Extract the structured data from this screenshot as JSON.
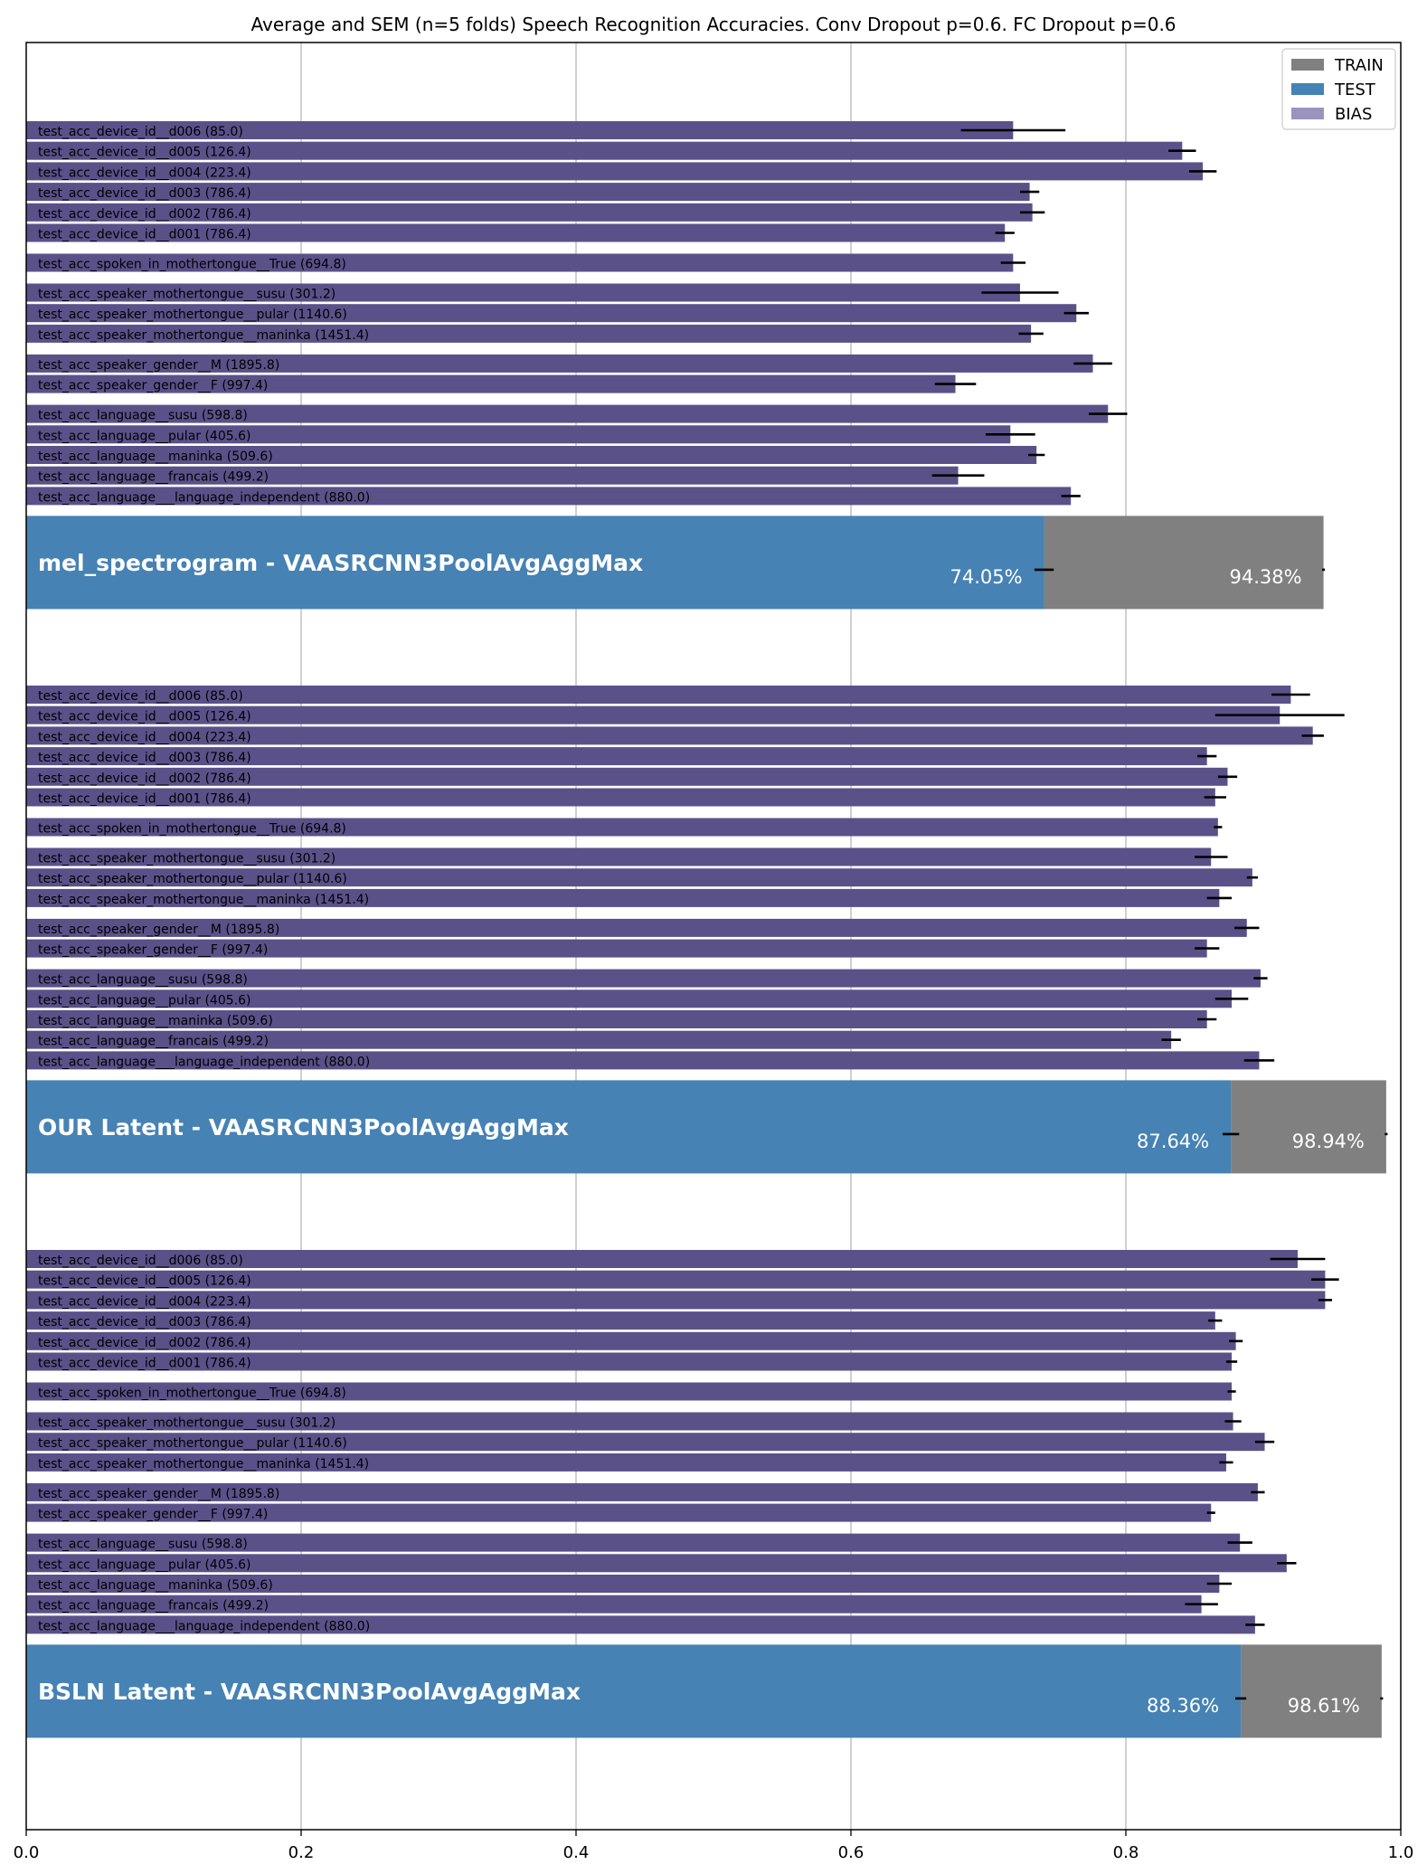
{
  "chart_data": {
    "type": "bar",
    "orientation": "horizontal",
    "title": "Average and SEM (n=5 folds) Speech Recognition Accuracies. Conv Dropout p=0.6. FC Dropout p=0.6",
    "xlabel": "",
    "ylabel": "",
    "xlim": [
      0.0,
      1.0
    ],
    "xticks": [
      "0.0",
      "0.2",
      "0.4",
      "0.6",
      "0.8",
      "1.0"
    ],
    "grid": "x",
    "legend": {
      "position": "top-right",
      "entries": [
        {
          "label": "TRAIN",
          "color": "#808080"
        },
        {
          "label": "TEST",
          "color": "#4682b4"
        },
        {
          "label": "BIAS",
          "color": "#9b93bf"
        }
      ]
    },
    "colors": {
      "bias_bar": "#5b5189",
      "test": "#4682b4",
      "train": "#808080",
      "error": "#000000",
      "grid": "#b0b0b0"
    },
    "groups": [
      {
        "name": "mel_spectrogram - VAASRCNN3PoolAvgAggMax",
        "test": 0.7405,
        "test_err": 0.007,
        "test_label": "74.05%",
        "train": 0.9438,
        "train_err": 0.001,
        "train_label": "94.38%",
        "bias_bars": [
          {
            "label": "test_acc_device_id__d006 (85.0)",
            "value": 0.718,
            "err": 0.038
          },
          {
            "label": "test_acc_device_id__d005 (126.4)",
            "value": 0.841,
            "err": 0.01
          },
          {
            "label": "test_acc_device_id__d004 (223.4)",
            "value": 0.856,
            "err": 0.01
          },
          {
            "label": "test_acc_device_id__d003 (786.4)",
            "value": 0.73,
            "err": 0.007
          },
          {
            "label": "test_acc_device_id__d002 (786.4)",
            "value": 0.732,
            "err": 0.009
          },
          {
            "label": "test_acc_device_id__d001 (786.4)",
            "value": 0.712,
            "err": 0.007
          },
          {
            "label": "test_acc_spoken_in_mothertongue__True (694.8)",
            "value": 0.718,
            "err": 0.009
          },
          {
            "label": "test_acc_speaker_mothertongue__susu (301.2)",
            "value": 0.723,
            "err": 0.028
          },
          {
            "label": "test_acc_speaker_mothertongue__pular (1140.6)",
            "value": 0.764,
            "err": 0.009
          },
          {
            "label": "test_acc_speaker_mothertongue__maninka (1451.4)",
            "value": 0.731,
            "err": 0.009
          },
          {
            "label": "test_acc_speaker_gender__M (1895.8)",
            "value": 0.776,
            "err": 0.014
          },
          {
            "label": "test_acc_speaker_gender__F (997.4)",
            "value": 0.676,
            "err": 0.015
          },
          {
            "label": "test_acc_language__susu (598.8)",
            "value": 0.787,
            "err": 0.014
          },
          {
            "label": "test_acc_language__pular (405.6)",
            "value": 0.716,
            "err": 0.018
          },
          {
            "label": "test_acc_language__maninka (509.6)",
            "value": 0.735,
            "err": 0.006
          },
          {
            "label": "test_acc_language__francais (499.2)",
            "value": 0.678,
            "err": 0.019
          },
          {
            "label": "test_acc_language___language_independent (880.0)",
            "value": 0.76,
            "err": 0.007
          }
        ]
      },
      {
        "name": "OUR  Latent - VAASRCNN3PoolAvgAggMax",
        "test": 0.8764,
        "test_err": 0.006,
        "test_label": "87.64%",
        "train": 0.9894,
        "train_err": 0.001,
        "train_label": "98.94%",
        "bias_bars": [
          {
            "label": "test_acc_device_id__d006 (85.0)",
            "value": 0.92,
            "err": 0.014
          },
          {
            "label": "test_acc_device_id__d005 (126.4)",
            "value": 0.912,
            "err": 0.047
          },
          {
            "label": "test_acc_device_id__d004 (223.4)",
            "value": 0.936,
            "err": 0.008
          },
          {
            "label": "test_acc_device_id__d003 (786.4)",
            "value": 0.859,
            "err": 0.007
          },
          {
            "label": "test_acc_device_id__d002 (786.4)",
            "value": 0.874,
            "err": 0.007
          },
          {
            "label": "test_acc_device_id__d001 (786.4)",
            "value": 0.865,
            "err": 0.008
          },
          {
            "label": "test_acc_spoken_in_mothertongue__True (694.8)",
            "value": 0.867,
            "err": 0.003
          },
          {
            "label": "test_acc_speaker_mothertongue__susu (301.2)",
            "value": 0.862,
            "err": 0.012
          },
          {
            "label": "test_acc_speaker_mothertongue__pular (1140.6)",
            "value": 0.892,
            "err": 0.004
          },
          {
            "label": "test_acc_speaker_mothertongue__maninka (1451.4)",
            "value": 0.868,
            "err": 0.009
          },
          {
            "label": "test_acc_speaker_gender__M (1895.8)",
            "value": 0.888,
            "err": 0.009
          },
          {
            "label": "test_acc_speaker_gender__F (997.4)",
            "value": 0.859,
            "err": 0.009
          },
          {
            "label": "test_acc_language__susu (598.8)",
            "value": 0.898,
            "err": 0.005
          },
          {
            "label": "test_acc_language__pular (405.6)",
            "value": 0.877,
            "err": 0.012
          },
          {
            "label": "test_acc_language__maninka (509.6)",
            "value": 0.859,
            "err": 0.007
          },
          {
            "label": "test_acc_language__francais (499.2)",
            "value": 0.833,
            "err": 0.007
          },
          {
            "label": "test_acc_language___language_independent (880.0)",
            "value": 0.897,
            "err": 0.011
          }
        ]
      },
      {
        "name": "BSLN  Latent - VAASRCNN3PoolAvgAggMax",
        "test": 0.8836,
        "test_err": 0.004,
        "test_label": "88.36%",
        "train": 0.9861,
        "train_err": 0.001,
        "train_label": "98.61%",
        "bias_bars": [
          {
            "label": "test_acc_device_id__d006 (85.0)",
            "value": 0.925,
            "err": 0.02
          },
          {
            "label": "test_acc_device_id__d005 (126.4)",
            "value": 0.945,
            "err": 0.01
          },
          {
            "label": "test_acc_device_id__d004 (223.4)",
            "value": 0.945,
            "err": 0.005
          },
          {
            "label": "test_acc_device_id__d003 (786.4)",
            "value": 0.865,
            "err": 0.005
          },
          {
            "label": "test_acc_device_id__d002 (786.4)",
            "value": 0.88,
            "err": 0.005
          },
          {
            "label": "test_acc_device_id__d001 (786.4)",
            "value": 0.877,
            "err": 0.004
          },
          {
            "label": "test_acc_spoken_in_mothertongue__True (694.8)",
            "value": 0.877,
            "err": 0.003
          },
          {
            "label": "test_acc_speaker_mothertongue__susu (301.2)",
            "value": 0.878,
            "err": 0.006
          },
          {
            "label": "test_acc_speaker_mothertongue__pular (1140.6)",
            "value": 0.901,
            "err": 0.007
          },
          {
            "label": "test_acc_speaker_mothertongue__maninka (1451.4)",
            "value": 0.873,
            "err": 0.005
          },
          {
            "label": "test_acc_speaker_gender__M (1895.8)",
            "value": 0.896,
            "err": 0.005
          },
          {
            "label": "test_acc_speaker_gender__F (997.4)",
            "value": 0.862,
            "err": 0.003
          },
          {
            "label": "test_acc_language__susu (598.8)",
            "value": 0.883,
            "err": 0.009
          },
          {
            "label": "test_acc_language__pular (405.6)",
            "value": 0.917,
            "err": 0.007
          },
          {
            "label": "test_acc_language__maninka (509.6)",
            "value": 0.868,
            "err": 0.009
          },
          {
            "label": "test_acc_language__francais (499.2)",
            "value": 0.855,
            "err": 0.012
          },
          {
            "label": "test_acc_language___language_independent (880.0)",
            "value": 0.894,
            "err": 0.007
          }
        ]
      }
    ]
  }
}
